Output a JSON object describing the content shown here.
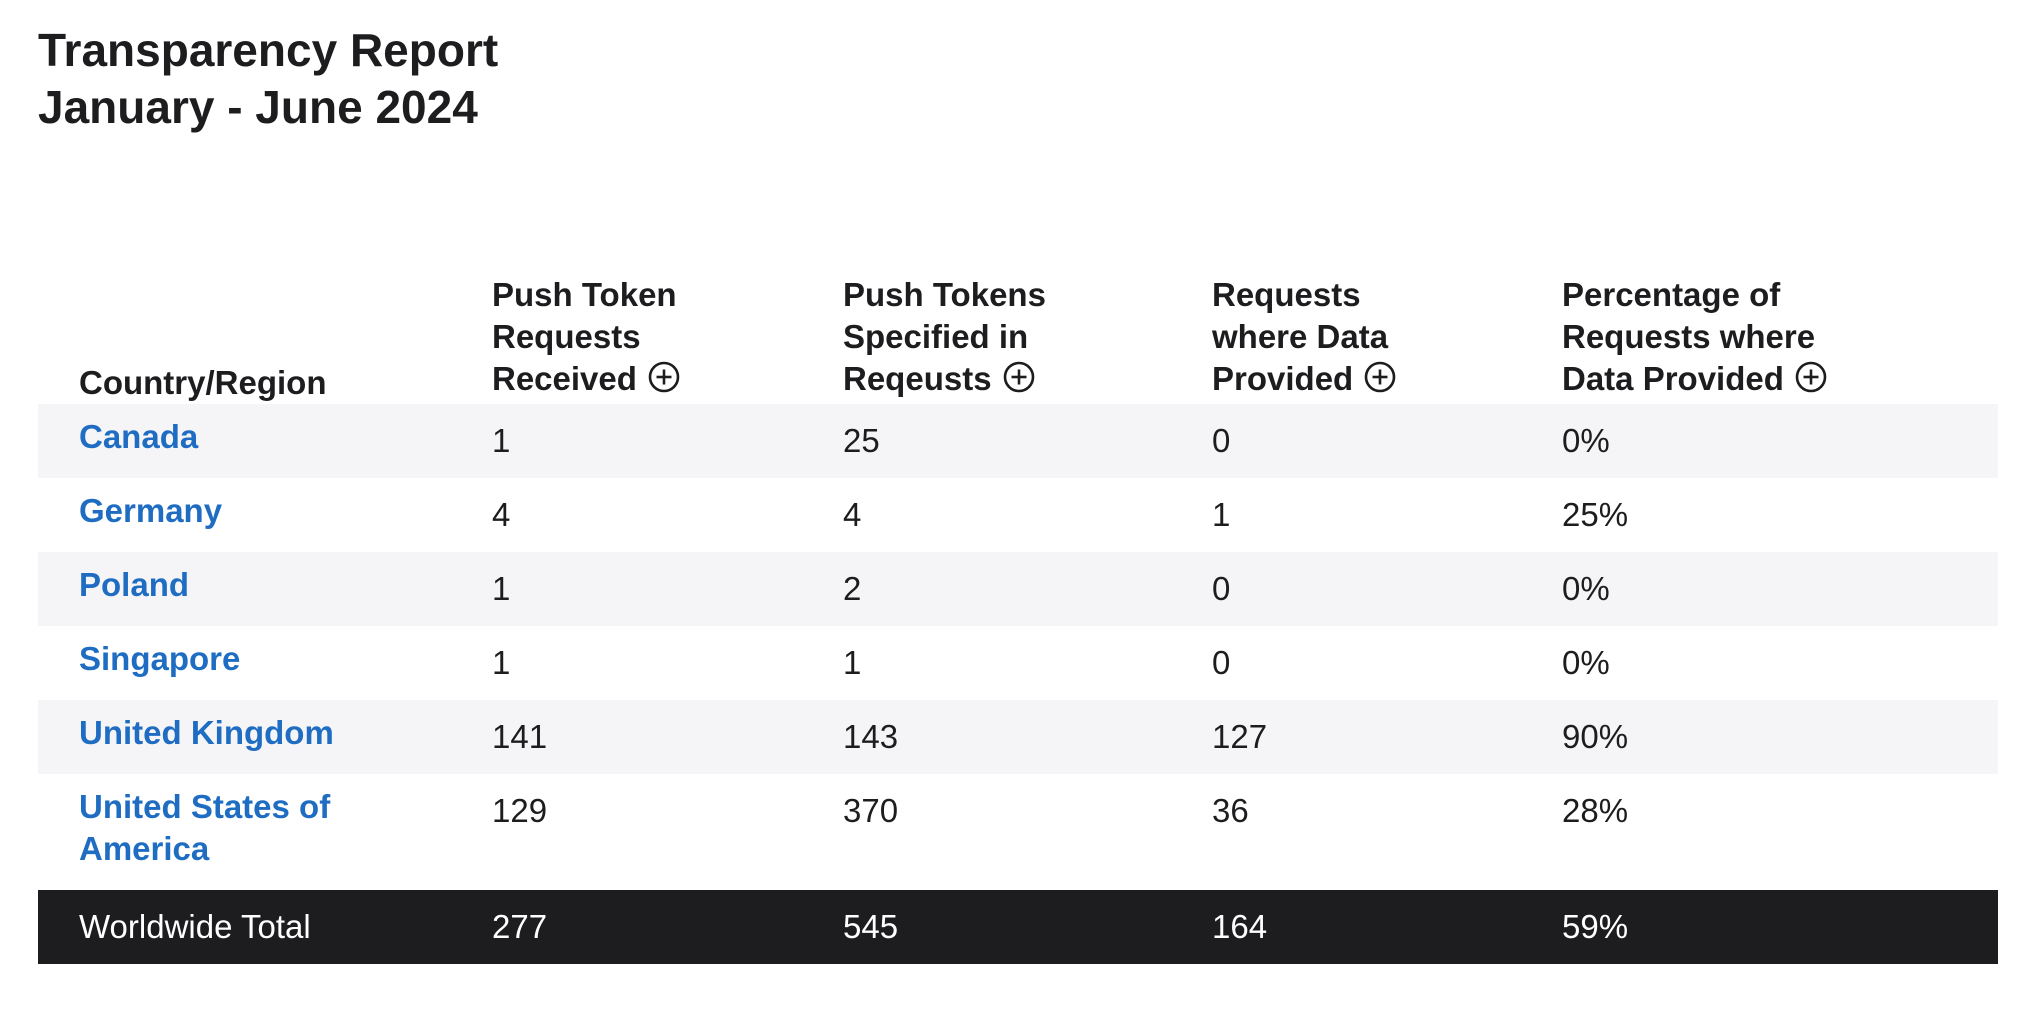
{
  "title": {
    "line1": "Transparency Report",
    "line2": "January - June 2024"
  },
  "table": {
    "headers": {
      "country": "Country/Region",
      "col1": [
        "Push Token",
        "Requests",
        "Received"
      ],
      "col2": [
        "Push Tokens",
        "Specified in",
        "Reqeusts"
      ],
      "col3": [
        "Requests",
        "where Data",
        "Provided"
      ],
      "col4": [
        "Percentage of",
        "Requests where",
        "Data Provided"
      ]
    },
    "header_icon": "plus-circle-icon",
    "rows": [
      {
        "country": "Canada",
        "received": "1",
        "specified": "25",
        "provided": "0",
        "percentage": "0%"
      },
      {
        "country": "Germany",
        "received": "4",
        "specified": "4",
        "provided": "1",
        "percentage": "25%"
      },
      {
        "country": "Poland",
        "received": "1",
        "specified": "2",
        "provided": "0",
        "percentage": "0%"
      },
      {
        "country": "Singapore",
        "received": "1",
        "specified": "1",
        "provided": "0",
        "percentage": "0%"
      },
      {
        "country": "United Kingdom",
        "received": "141",
        "specified": "143",
        "provided": "127",
        "percentage": "90%"
      },
      {
        "country_lines": [
          "United States of",
          "America"
        ],
        "received": "129",
        "specified": "370",
        "provided": "36",
        "percentage": "28%"
      }
    ],
    "total": {
      "label": "Worldwide Total",
      "received": "277",
      "specified": "545",
      "provided": "164",
      "percentage": "59%"
    }
  },
  "colors": {
    "link": "#1f6dc2",
    "text": "#1d1d1f",
    "stripe": "#f5f5f7",
    "total_bg": "#1d1d1f",
    "total_text": "#ffffff"
  }
}
